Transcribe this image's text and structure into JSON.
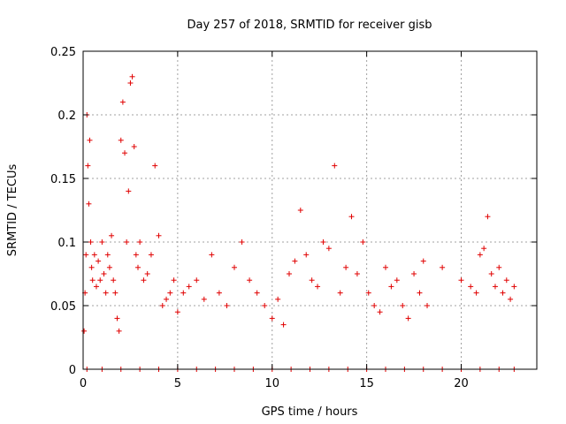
{
  "chart_data": {
    "type": "scatter",
    "title": "Day 257 of 2018, SRMTID for receiver gisb",
    "xlabel": "GPS time / hours",
    "ylabel": "SRMTID / TECUs",
    "xlim": [
      0,
      24
    ],
    "ylim": [
      0,
      0.25
    ],
    "xticks": [
      "0",
      "5",
      "10",
      "15",
      "20"
    ],
    "yticks": [
      "0",
      "0.05",
      "0.1",
      "0.15",
      "0.2",
      "0.25"
    ],
    "grid": true,
    "marker": "plus",
    "series_color": "#e00000",
    "series": [
      {
        "points": [
          [
            0.05,
            0.03
          ],
          [
            0.1,
            0.06
          ],
          [
            0.15,
            0.09
          ],
          [
            0.2,
            0.2
          ],
          [
            0.25,
            0.16
          ],
          [
            0.3,
            0.13
          ],
          [
            0.35,
            0.18
          ],
          [
            0.4,
            0.1
          ],
          [
            0.45,
            0.08
          ],
          [
            0.5,
            0.07
          ],
          [
            0.6,
            0.09
          ],
          [
            0.7,
            0.065
          ],
          [
            0.8,
            0.085
          ],
          [
            0.9,
            0.07
          ],
          [
            1.0,
            0.1
          ],
          [
            1.1,
            0.075
          ],
          [
            1.2,
            0.06
          ],
          [
            1.3,
            0.09
          ],
          [
            1.4,
            0.08
          ],
          [
            1.5,
            0.105
          ],
          [
            1.6,
            0.07
          ],
          [
            1.7,
            0.06
          ],
          [
            1.8,
            0.04
          ],
          [
            1.9,
            0.03
          ],
          [
            2.0,
            0.18
          ],
          [
            2.1,
            0.21
          ],
          [
            2.2,
            0.17
          ],
          [
            2.3,
            0.1
          ],
          [
            2.4,
            0.14
          ],
          [
            2.5,
            0.225
          ],
          [
            2.6,
            0.23
          ],
          [
            2.7,
            0.175
          ],
          [
            2.8,
            0.09
          ],
          [
            2.9,
            0.08
          ],
          [
            3.0,
            0.1
          ],
          [
            3.2,
            0.07
          ],
          [
            3.4,
            0.075
          ],
          [
            3.6,
            0.09
          ],
          [
            3.8,
            0.16
          ],
          [
            4.0,
            0.105
          ],
          [
            4.2,
            0.05
          ],
          [
            4.4,
            0.055
          ],
          [
            4.6,
            0.06
          ],
          [
            4.8,
            0.07
          ],
          [
            5.0,
            0.045
          ],
          [
            5.3,
            0.06
          ],
          [
            5.6,
            0.065
          ],
          [
            6.0,
            0.07
          ],
          [
            6.4,
            0.055
          ],
          [
            6.8,
            0.09
          ],
          [
            7.2,
            0.06
          ],
          [
            7.6,
            0.05
          ],
          [
            8.0,
            0.08
          ],
          [
            8.4,
            0.1
          ],
          [
            8.8,
            0.07
          ],
          [
            9.2,
            0.06
          ],
          [
            9.6,
            0.05
          ],
          [
            10.0,
            0.04
          ],
          [
            10.3,
            0.055
          ],
          [
            10.6,
            0.035
          ],
          [
            10.9,
            0.075
          ],
          [
            11.2,
            0.085
          ],
          [
            11.5,
            0.125
          ],
          [
            11.8,
            0.09
          ],
          [
            12.1,
            0.07
          ],
          [
            12.4,
            0.065
          ],
          [
            12.7,
            0.1
          ],
          [
            13.0,
            0.095
          ],
          [
            13.3,
            0.16
          ],
          [
            13.6,
            0.06
          ],
          [
            13.9,
            0.08
          ],
          [
            14.2,
            0.12
          ],
          [
            14.5,
            0.075
          ],
          [
            14.8,
            0.1
          ],
          [
            15.1,
            0.06
          ],
          [
            15.4,
            0.05
          ],
          [
            15.7,
            0.045
          ],
          [
            16.0,
            0.08
          ],
          [
            16.3,
            0.065
          ],
          [
            16.6,
            0.07
          ],
          [
            16.9,
            0.05
          ],
          [
            17.2,
            0.04
          ],
          [
            17.5,
            0.075
          ],
          [
            17.8,
            0.06
          ],
          [
            18.0,
            0.085
          ],
          [
            18.2,
            0.05
          ],
          [
            19.0,
            0.08
          ],
          [
            20.0,
            0.07
          ],
          [
            20.5,
            0.065
          ],
          [
            20.8,
            0.06
          ],
          [
            21.0,
            0.09
          ],
          [
            21.2,
            0.095
          ],
          [
            21.4,
            0.12
          ],
          [
            21.6,
            0.075
          ],
          [
            21.8,
            0.065
          ],
          [
            22.0,
            0.08
          ],
          [
            22.2,
            0.06
          ],
          [
            22.4,
            0.07
          ],
          [
            22.6,
            0.055
          ],
          [
            22.8,
            0.065
          ],
          [
            0.2,
            0.0
          ],
          [
            1.0,
            0.0
          ],
          [
            2.0,
            0.0
          ],
          [
            3.0,
            0.0
          ],
          [
            4.0,
            0.0
          ],
          [
            5.0,
            0.0
          ],
          [
            6.0,
            0.0
          ],
          [
            7.0,
            0.0
          ],
          [
            8.0,
            0.0
          ],
          [
            9.0,
            0.0
          ],
          [
            10.0,
            0.0
          ],
          [
            11.0,
            0.0
          ],
          [
            12.0,
            0.0
          ],
          [
            13.0,
            0.0
          ],
          [
            14.0,
            0.0
          ],
          [
            15.0,
            0.0
          ],
          [
            16.0,
            0.0
          ],
          [
            17.0,
            0.0
          ],
          [
            18.0,
            0.0
          ],
          [
            19.0,
            0.0
          ],
          [
            20.0,
            0.0
          ],
          [
            21.0,
            0.0
          ],
          [
            22.0,
            0.0
          ],
          [
            22.8,
            0.0
          ]
        ]
      }
    ]
  }
}
